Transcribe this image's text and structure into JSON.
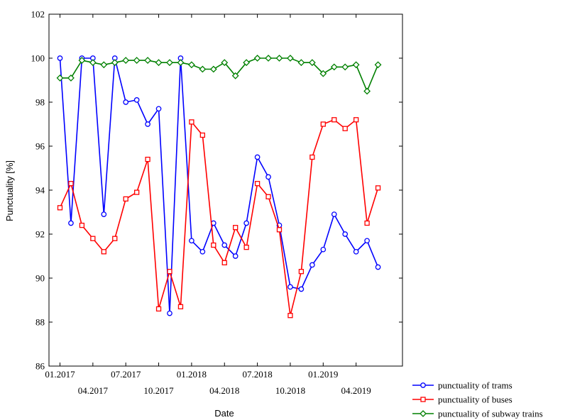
{
  "chart_data": {
    "type": "line",
    "xlabel": "Date",
    "ylabel": "Punctuality [%]",
    "ylim": [
      86,
      102
    ],
    "yticks": [
      "86",
      "88",
      "90",
      "92",
      "94",
      "96",
      "98",
      "100",
      "102"
    ],
    "xticks": [
      {
        "label": "01.2017",
        "month": 0
      },
      {
        "label": "04.2017",
        "month": 3
      },
      {
        "label": "07.2017",
        "month": 6
      },
      {
        "label": "10.2017",
        "month": 9
      },
      {
        "label": "01.2018",
        "month": 12
      },
      {
        "label": "04.2018",
        "month": 15
      },
      {
        "label": "07.2018",
        "month": 18
      },
      {
        "label": "10.2018",
        "month": 21
      },
      {
        "label": "01.2019",
        "month": 24
      },
      {
        "label": "04.2019",
        "month": 27
      }
    ],
    "x": [
      "01.2017",
      "02.2017",
      "03.2017",
      "04.2017",
      "05.2017",
      "06.2017",
      "07.2017",
      "08.2017",
      "09.2017",
      "10.2017",
      "11.2017",
      "12.2017",
      "01.2018",
      "02.2018",
      "03.2018",
      "04.2018",
      "05.2018",
      "06.2018",
      "07.2018",
      "08.2018",
      "09.2018",
      "10.2018",
      "11.2018",
      "12.2018",
      "01.2019",
      "02.2019",
      "03.2019",
      "04.2019",
      "05.2019",
      "06.2019"
    ],
    "grid": false,
    "legend_position": "bottom-right outside",
    "series": [
      {
        "name": "punctuality of trams",
        "color": "#0000ff",
        "marker": "circle",
        "values": [
          100.0,
          92.5,
          100.0,
          100.0,
          92.9,
          100.0,
          98.0,
          98.1,
          97.0,
          97.7,
          88.4,
          100.0,
          91.7,
          91.2,
          92.5,
          91.5,
          91.0,
          92.5,
          95.5,
          94.6,
          92.4,
          89.6,
          89.5,
          90.6,
          91.3,
          92.9,
          92.0,
          91.2,
          91.7,
          90.5
        ]
      },
      {
        "name": "punctuality of buses",
        "color": "#ff0000",
        "marker": "square",
        "values": [
          93.2,
          94.3,
          92.4,
          91.8,
          91.2,
          91.8,
          93.6,
          93.9,
          95.4,
          88.6,
          90.3,
          88.7,
          97.1,
          96.5,
          91.5,
          90.7,
          92.3,
          91.4,
          94.3,
          93.7,
          92.2,
          88.3,
          90.3,
          95.5,
          97.0,
          97.2,
          96.8,
          97.2,
          92.5,
          94.1
        ]
      },
      {
        "name": "punctuality of subway trains",
        "color": "#008000",
        "marker": "diamond",
        "values": [
          99.1,
          99.1,
          99.9,
          99.8,
          99.7,
          99.8,
          99.9,
          99.9,
          99.9,
          99.8,
          99.8,
          99.8,
          99.7,
          99.5,
          99.5,
          99.8,
          99.2,
          99.8,
          100.0,
          100.0,
          100.0,
          100.0,
          99.8,
          99.8,
          99.3,
          99.6,
          99.6,
          99.7,
          98.5,
          99.7
        ]
      }
    ]
  }
}
